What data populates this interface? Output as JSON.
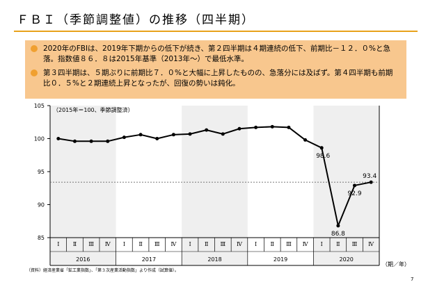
{
  "slide": {
    "title": "ＦＢＩ（季節調整値）の推移（四半期）",
    "bullets": [
      "2020年のFBIは、2019年下期からの低下が続き、第２四半期は４期連続の低下、前期比－１２．０%と急落。指数値８６．８は2015年基準（2013年～）で最低水準。",
      "第３四半期は、５期ぶりに前期比７．０%と大幅に上昇したものの、急落分には及ばず。第４四半期も前期比０．５%と２期連続上昇となったが、回復の勢いは鈍化。"
    ],
    "footnote": "（資料）経済産業省「鉱工業指数」、「第３次産業活動指数」より作成（試算値）。",
    "page_number": "7"
  },
  "chart_data": {
    "type": "line",
    "note": "（2015年＝100、季節調整済）",
    "unit_label": "（期／年）",
    "ylim": [
      85,
      105
    ],
    "yticks": [
      "85",
      "90",
      "95",
      "100",
      "105"
    ],
    "quarter_labels": [
      "Ⅰ",
      "Ⅱ",
      "Ⅲ",
      "Ⅳ",
      "Ⅰ",
      "Ⅱ",
      "Ⅲ",
      "Ⅳ",
      "Ⅰ",
      "Ⅱ",
      "Ⅲ",
      "Ⅳ",
      "Ⅰ",
      "Ⅱ",
      "Ⅲ",
      "Ⅳ",
      "Ⅰ",
      "Ⅱ",
      "Ⅲ",
      "Ⅳ"
    ],
    "years": [
      "2016",
      "2017",
      "2018",
      "2019",
      "2020"
    ],
    "values": [
      100.0,
      99.6,
      99.6,
      99.6,
      100.2,
      100.6,
      100.0,
      100.6,
      100.7,
      101.3,
      100.7,
      101.5,
      101.7,
      101.8,
      101.7,
      99.8,
      98.6,
      86.8,
      92.9,
      93.4
    ],
    "data_labels": [
      {
        "index": 16,
        "text": "98.6"
      },
      {
        "index": 17,
        "text": "86.8"
      },
      {
        "index": 18,
        "text": "92.9"
      },
      {
        "index": 19,
        "text": "93.4"
      }
    ],
    "reference_value": 93.4,
    "grid": false,
    "colors": {
      "line": "#000000",
      "shade": "#efefef",
      "reference": "#666666",
      "accent": "#e8a21a"
    }
  }
}
